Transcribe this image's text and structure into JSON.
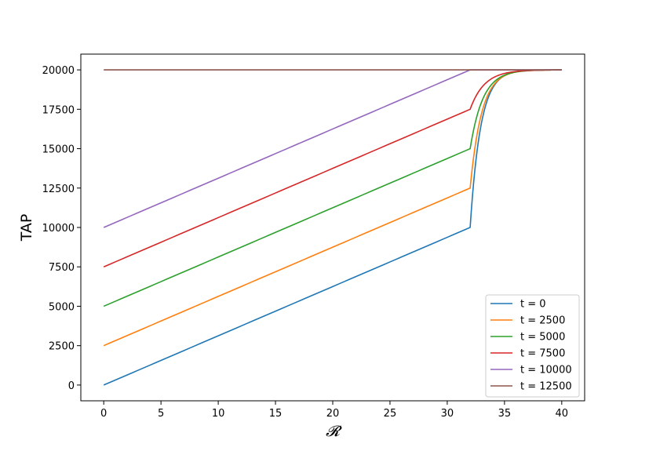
{
  "chart_data": {
    "type": "line",
    "xlabel": "𝓡",
    "ylabel": "TAP",
    "xlim": [
      -2,
      42
    ],
    "ylim": [
      -1000,
      21000
    ],
    "xticks": [
      0,
      5,
      10,
      15,
      20,
      25,
      30,
      35,
      40
    ],
    "yticks": [
      0,
      2500,
      5000,
      7500,
      10000,
      12500,
      15000,
      17500,
      20000
    ],
    "grid": false,
    "legend_position": "bottom-right",
    "linear_until": 32,
    "x_max": 40,
    "series": [
      {
        "name": "t = 0",
        "color": "#1f77b4",
        "start": 0,
        "value_at_32": 10000,
        "plateau": 20000,
        "decay": 1.1
      },
      {
        "name": "t = 2500",
        "color": "#ff7f0e",
        "start": 2500,
        "value_at_32": 12500,
        "plateau": 20000,
        "decay": 1.0
      },
      {
        "name": "t = 5000",
        "color": "#2ca02c",
        "start": 5000,
        "value_at_32": 15000,
        "plateau": 20000,
        "decay": 0.9
      },
      {
        "name": "t = 7500",
        "color": "#d62728",
        "start": 7500,
        "value_at_32": 17500,
        "plateau": 20000,
        "decay": 0.8
      },
      {
        "name": "t = 10000",
        "color": "#9467bd",
        "start": 10000,
        "value_at_32": 20000,
        "plateau": 20000,
        "decay": 0.8
      },
      {
        "name": "t = 12500",
        "color": "#8c564b",
        "start": 20000,
        "value_at_32": 20000,
        "plateau": 20000,
        "decay": 0.8
      }
    ]
  }
}
